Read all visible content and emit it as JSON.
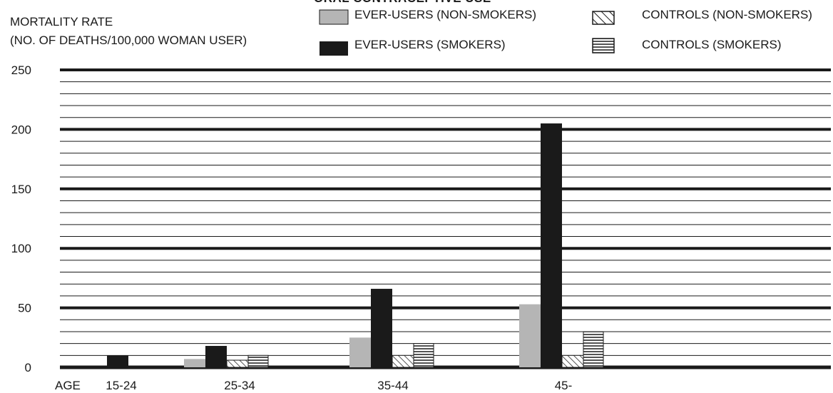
{
  "chart_data": {
    "type": "bar",
    "title_fragment": "ORAL CONTRACEPTIVE USE",
    "ylabel_line1": "MORTALITY RATE",
    "ylabel_line2": "(NO. OF DEATHS/100,000 WOMAN USER)",
    "xlabel": "AGE",
    "categories": [
      "15-24",
      "25-34",
      "35-44",
      "45-"
    ],
    "ylim": [
      0,
      250
    ],
    "yticks": [
      0,
      50,
      100,
      150,
      200,
      250
    ],
    "grid": true,
    "legend_position": "top",
    "series": [
      {
        "name": "EVER-USERS (NON-SMOKERS)",
        "pattern": "solid-gray",
        "color": "#b5b5b5",
        "values": [
          0,
          7,
          25,
          53
        ]
      },
      {
        "name": "EVER-USERS (SMOKERS)",
        "pattern": "solid-black",
        "color": "#1a1a1a",
        "values": [
          10,
          18,
          66,
          205
        ]
      },
      {
        "name": "CONTROLS (NON-SMOKERS)",
        "pattern": "diagonal-hatch",
        "color": "#1a1a1a",
        "values": [
          0,
          6,
          10,
          10
        ]
      },
      {
        "name": "CONTROLS (SMOKERS)",
        "pattern": "horizontal-hatch",
        "color": "#1a1a1a",
        "values": [
          0,
          10,
          20,
          30
        ]
      }
    ]
  }
}
